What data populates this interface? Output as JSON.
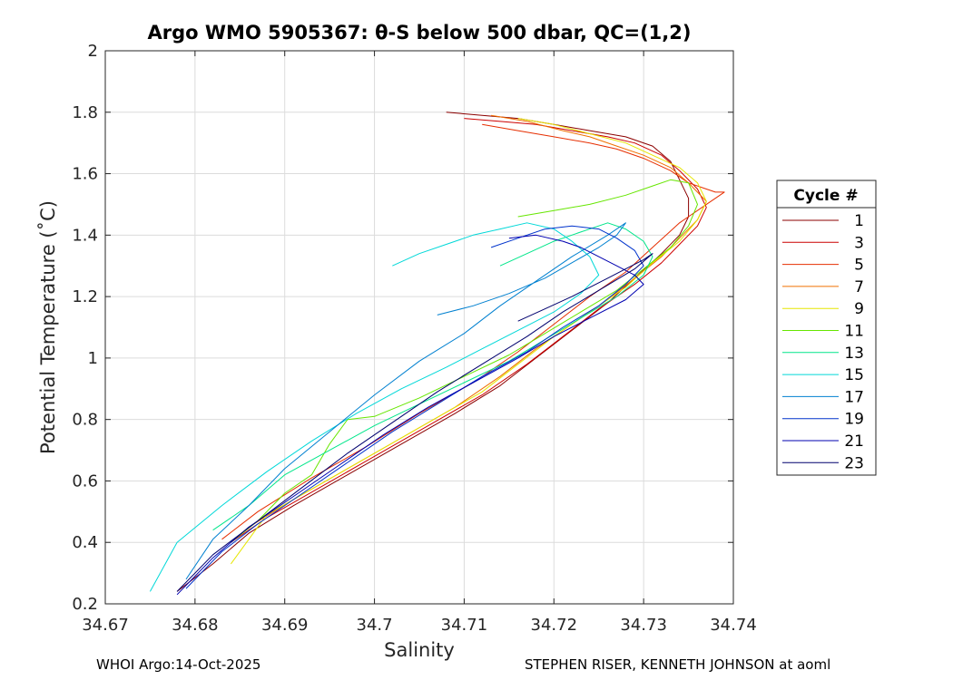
{
  "chart_data": {
    "type": "line",
    "title": "Argo WMO 5905367: θ-S below 500 dbar,  QC=(1,2)",
    "xlabel": "Salinity",
    "ylabel": "Potential Temperature (˚C)",
    "xlim": [
      34.67,
      34.74
    ],
    "ylim": [
      0.2,
      2.0
    ],
    "xticks": [
      34.67,
      34.68,
      34.69,
      34.7,
      34.71,
      34.72,
      34.73,
      34.74
    ],
    "xtick_labels": [
      "34.67",
      "34.68",
      "34.69",
      "34.7",
      "34.71",
      "34.72",
      "34.73",
      "34.74"
    ],
    "yticks": [
      0.2,
      0.4,
      0.6,
      0.8,
      1.0,
      1.2,
      1.4,
      1.6,
      1.8,
      2.0
    ],
    "ytick_labels": [
      "0.2",
      "0.4",
      "0.6",
      "0.8",
      "1",
      "1.2",
      "1.4",
      "1.6",
      "1.8",
      "2"
    ],
    "grid": true,
    "legend_title": "Cycle #",
    "legend_position": "outside-right",
    "series": [
      {
        "name": "1",
        "color": "#8b0000",
        "x": [
          34.708,
          34.712,
          34.716,
          34.72,
          34.724,
          34.728,
          34.731,
          34.733,
          34.734,
          34.735,
          34.735,
          34.734,
          34.732,
          34.729,
          34.726,
          34.722,
          34.718,
          34.714,
          34.709,
          34.703,
          34.697,
          34.691,
          34.686,
          34.682,
          34.678
        ],
        "y": [
          1.8,
          1.79,
          1.78,
          1.76,
          1.74,
          1.72,
          1.69,
          1.64,
          1.58,
          1.52,
          1.46,
          1.4,
          1.34,
          1.26,
          1.18,
          1.09,
          1.0,
          0.91,
          0.82,
          0.72,
          0.62,
          0.52,
          0.43,
          0.33,
          0.24
        ]
      },
      {
        "name": "3",
        "color": "#cc0000",
        "x": [
          34.71,
          34.714,
          34.718,
          34.722,
          34.726,
          34.729,
          34.732,
          34.734,
          34.736,
          34.737,
          34.736,
          34.734,
          34.732,
          34.729,
          34.725,
          34.721,
          34.717,
          34.712,
          34.706,
          34.7,
          34.694,
          34.688,
          34.684
        ],
        "y": [
          1.78,
          1.77,
          1.76,
          1.74,
          1.72,
          1.7,
          1.66,
          1.61,
          1.55,
          1.49,
          1.43,
          1.37,
          1.31,
          1.24,
          1.16,
          1.07,
          0.98,
          0.88,
          0.78,
          0.68,
          0.58,
          0.48,
          0.4
        ]
      },
      {
        "name": "5",
        "color": "#e62e00",
        "x": [
          34.712,
          34.716,
          34.72,
          34.724,
          34.727,
          34.73,
          34.733,
          34.735,
          34.737,
          34.738,
          34.739,
          34.737,
          34.734,
          34.731,
          34.728,
          34.724,
          34.72,
          34.716,
          34.711,
          34.705,
          34.699,
          34.693,
          34.687,
          34.683
        ],
        "y": [
          1.76,
          1.74,
          1.72,
          1.7,
          1.68,
          1.65,
          1.61,
          1.57,
          1.55,
          1.54,
          1.54,
          1.5,
          1.44,
          1.36,
          1.28,
          1.2,
          1.11,
          1.02,
          0.92,
          0.82,
          0.71,
          0.61,
          0.5,
          0.41
        ]
      },
      {
        "name": "7",
        "color": "#f07000",
        "x": [
          34.713,
          34.717,
          34.721,
          34.724,
          34.727,
          34.73,
          34.733,
          34.735,
          34.737,
          34.736,
          34.734,
          34.732,
          34.729,
          34.726,
          34.722,
          34.718,
          34.714,
          34.709,
          34.703,
          34.697,
          34.691,
          34.686,
          34.684
        ],
        "y": [
          1.79,
          1.77,
          1.74,
          1.72,
          1.69,
          1.66,
          1.62,
          1.57,
          1.51,
          1.45,
          1.39,
          1.33,
          1.26,
          1.19,
          1.11,
          1.03,
          0.94,
          0.84,
          0.74,
          0.64,
          0.54,
          0.45,
          0.4
        ]
      },
      {
        "name": "9",
        "color": "#e6e600",
        "x": [
          34.716,
          34.72,
          34.724,
          34.728,
          34.731,
          34.734,
          34.736,
          34.737,
          34.736,
          34.734,
          34.731,
          34.728,
          34.724,
          34.72,
          34.716,
          34.712,
          34.706,
          34.7,
          34.694,
          34.688,
          34.684
        ],
        "y": [
          1.78,
          1.76,
          1.73,
          1.7,
          1.66,
          1.62,
          1.57,
          1.51,
          1.45,
          1.38,
          1.31,
          1.23,
          1.15,
          1.07,
          0.98,
          0.89,
          0.79,
          0.69,
          0.59,
          0.49,
          0.33
        ]
      },
      {
        "name": "11",
        "color": "#66e600",
        "x": [
          34.716,
          34.72,
          34.724,
          34.728,
          34.731,
          34.733,
          34.735,
          34.736,
          34.735,
          34.733,
          34.73,
          34.727,
          34.723,
          34.719,
          34.715,
          34.71,
          34.705,
          34.7,
          34.697,
          34.695,
          34.693,
          34.69,
          34.687,
          34.684
        ],
        "y": [
          1.46,
          1.48,
          1.5,
          1.53,
          1.56,
          1.58,
          1.57,
          1.5,
          1.43,
          1.36,
          1.29,
          1.22,
          1.15,
          1.08,
          1.01,
          0.94,
          0.87,
          0.81,
          0.8,
          0.72,
          0.62,
          0.56,
          0.47,
          0.4
        ]
      },
      {
        "name": "13",
        "color": "#00e68a",
        "x": [
          34.714,
          34.717,
          34.72,
          34.723,
          34.726,
          34.728,
          34.73,
          34.731,
          34.73,
          34.727,
          34.723,
          34.719,
          34.715,
          34.71,
          34.705,
          34.7,
          34.695,
          34.69,
          34.686,
          34.682
        ],
        "y": [
          1.3,
          1.34,
          1.38,
          1.41,
          1.44,
          1.42,
          1.38,
          1.33,
          1.27,
          1.2,
          1.13,
          1.06,
          0.99,
          0.92,
          0.85,
          0.78,
          0.7,
          0.62,
          0.52,
          0.44
        ]
      },
      {
        "name": "15",
        "color": "#00d8d8",
        "x": [
          34.702,
          34.705,
          34.708,
          34.711,
          34.714,
          34.717,
          34.72,
          34.722,
          34.724,
          34.725,
          34.723,
          34.72,
          34.716,
          34.712,
          34.708,
          34.703,
          34.698,
          34.693,
          34.688,
          34.683,
          34.678,
          34.675
        ],
        "y": [
          1.3,
          1.34,
          1.37,
          1.4,
          1.42,
          1.44,
          1.42,
          1.38,
          1.33,
          1.27,
          1.21,
          1.15,
          1.09,
          1.03,
          0.97,
          0.9,
          0.82,
          0.73,
          0.63,
          0.52,
          0.4,
          0.24
        ]
      },
      {
        "name": "17",
        "color": "#0080d0",
        "x": [
          34.707,
          34.711,
          34.715,
          34.719,
          34.722,
          34.725,
          34.727,
          34.728,
          34.726,
          34.722,
          34.718,
          34.714,
          34.71,
          34.705,
          34.7,
          34.695,
          34.69,
          34.686,
          34.682,
          34.679
        ],
        "y": [
          1.14,
          1.17,
          1.21,
          1.26,
          1.31,
          1.36,
          1.4,
          1.44,
          1.4,
          1.33,
          1.25,
          1.17,
          1.08,
          0.99,
          0.88,
          0.76,
          0.64,
          0.52,
          0.41,
          0.28
        ]
      },
      {
        "name": "19",
        "color": "#0033cc",
        "x": [
          34.713,
          34.716,
          34.719,
          34.722,
          34.725,
          34.727,
          34.729,
          34.73,
          34.728,
          34.725,
          34.721,
          34.717,
          34.712,
          34.707,
          34.702,
          34.697,
          34.692,
          34.687,
          34.683,
          34.679
        ],
        "y": [
          1.36,
          1.39,
          1.42,
          1.43,
          1.42,
          1.39,
          1.35,
          1.3,
          1.24,
          1.17,
          1.1,
          1.02,
          0.94,
          0.85,
          0.76,
          0.66,
          0.56,
          0.46,
          0.37,
          0.25
        ]
      },
      {
        "name": "21",
        "color": "#0000b0",
        "x": [
          34.715,
          34.718,
          34.721,
          34.723,
          34.725,
          34.727,
          34.729,
          34.73,
          34.728,
          34.724,
          34.72,
          34.716,
          34.711,
          34.706,
          34.701,
          34.696,
          34.691,
          34.686,
          34.682,
          34.678
        ],
        "y": [
          1.39,
          1.4,
          1.38,
          1.36,
          1.33,
          1.3,
          1.27,
          1.24,
          1.19,
          1.13,
          1.07,
          1.0,
          0.92,
          0.84,
          0.75,
          0.65,
          0.55,
          0.45,
          0.35,
          0.23
        ]
      },
      {
        "name": "23",
        "color": "#00006e",
        "x": [
          34.716,
          34.719,
          34.722,
          34.724,
          34.726,
          34.728,
          34.73,
          34.731,
          34.729,
          34.725,
          34.721,
          34.717,
          34.712,
          34.707,
          34.702,
          34.697,
          34.692,
          34.687,
          34.682,
          34.678
        ],
        "y": [
          1.12,
          1.16,
          1.2,
          1.23,
          1.26,
          1.29,
          1.32,
          1.34,
          1.29,
          1.22,
          1.15,
          1.07,
          0.98,
          0.89,
          0.79,
          0.69,
          0.58,
          0.47,
          0.36,
          0.24
        ]
      }
    ]
  },
  "footer": {
    "left": "WHOI Argo:14-Oct-2025",
    "right": "STEPHEN RISER, KENNETH JOHNSON at aoml"
  }
}
